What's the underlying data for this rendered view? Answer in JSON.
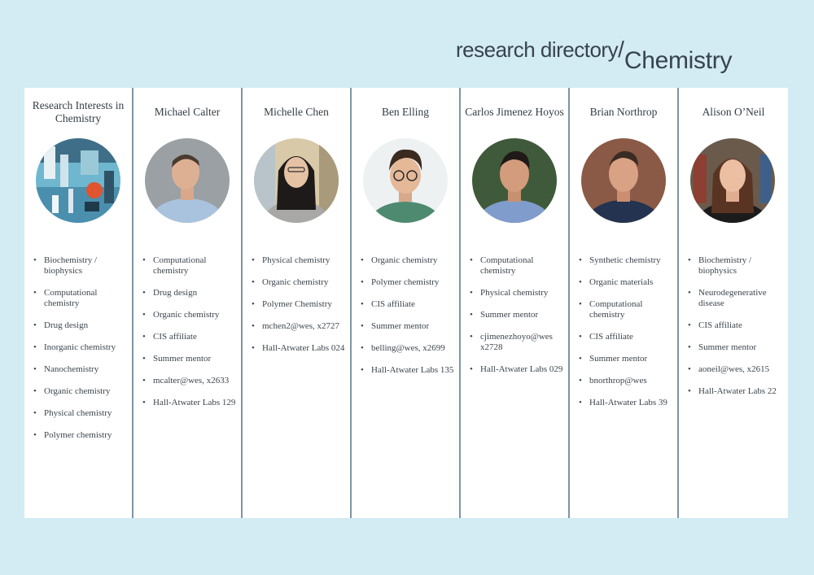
{
  "header": {
    "prefix": "research directory",
    "slash": "/",
    "subject": "Chemistry"
  },
  "columns": [
    {
      "title": "Research Interests in Chemistry",
      "items": [
        "Biochemistry / biophysics",
        "Computational chemistry",
        "Drug design",
        "Inorganic chemistry",
        "Nanochemistry",
        "Organic chemistry",
        "Physical chemistry",
        "Polymer chemistry"
      ]
    },
    {
      "title": "Michael Calter",
      "items": [
        "Computational chemistry",
        "Drug design",
        "Organic chemistry",
        "CIS affiliate",
        "Summer mentor",
        "mcalter@wes, x2633",
        "Hall-Atwater Labs 129"
      ]
    },
    {
      "title": "Michelle Chen",
      "items": [
        "Physical chemistry",
        "Organic chemistry",
        "Polymer Chemistry",
        "mchen2@wes, x2727",
        "Hall-Atwater Labs 024"
      ]
    },
    {
      "title": "Ben Elling",
      "items": [
        "Organic chemistry",
        "Polymer chemistry",
        "CIS affiliate",
        "Summer mentor",
        "belling@wes, x2699",
        "Hall-Atwater Labs 135"
      ]
    },
    {
      "title": "Carlos Jimenez Hoyos",
      "items": [
        "Computational chemistry",
        "Physical chemistry",
        "Summer mentor",
        "cjimenezhoyo@wes x2728",
        "Hall-Atwater Labs 029"
      ]
    },
    {
      "title": "Brian Northrop",
      "items": [
        "Synthetic chemistry",
        "Organic materials",
        "Computational chemistry",
        "CIS affiliate",
        "Summer mentor",
        "bnorthrop@wes",
        "Hall-Atwater Labs 39"
      ]
    },
    {
      "title": "Alison O’Neil",
      "items": [
        "Biochemistry / biophysics",
        "Neurodegenerative disease",
        "CIS affiliate",
        "Summer mentor",
        "aoneil@wes, x2615",
        "Hall-Atwater Labs 22"
      ]
    }
  ]
}
